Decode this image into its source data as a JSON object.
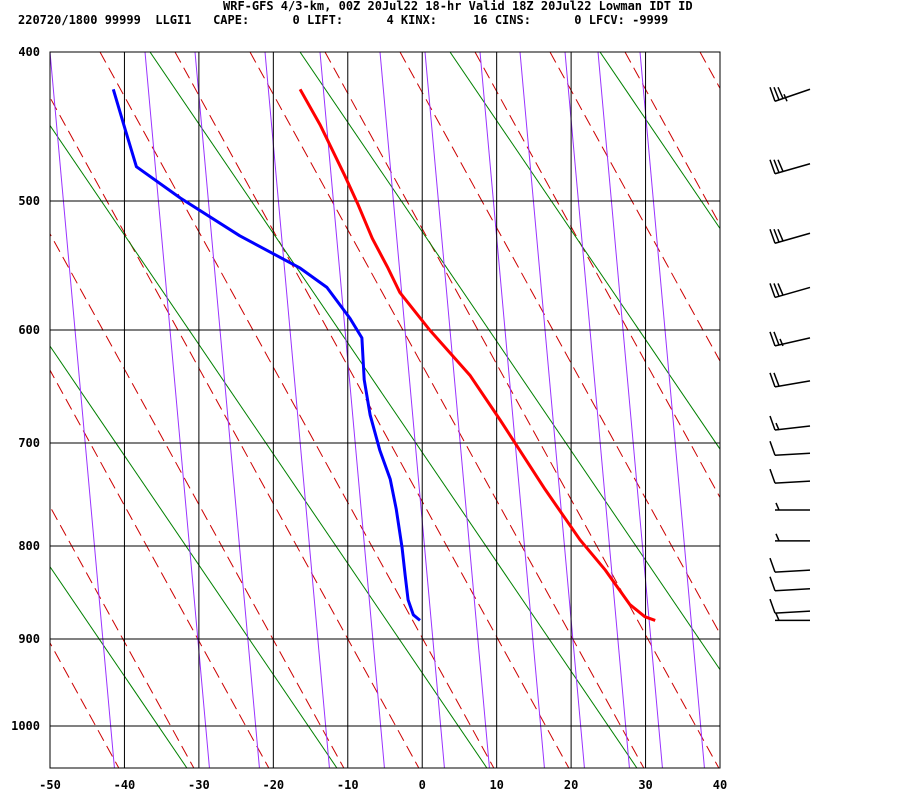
{
  "header": {
    "title": "WRF-GFS 4/3-km, 00Z 20Jul22 18-hr Valid 18Z 20Jul22 Lowman IDT ID",
    "info": "220720/1800 99999  LLGI1   CAPE:      0 LIFT:      4 KINX:     16 CINS:      0 LFCV: -9999"
  },
  "chart_data": {
    "type": "line",
    "title": "WRF-GFS 4/3-km, 00Z 20Jul22 18-hr Valid 18Z 20Jul22 Lowman IDT ID",
    "x_ticks": [
      "-50",
      "-40",
      "-30",
      "-20",
      "-10",
      "0",
      "10",
      "20",
      "30",
      "40"
    ],
    "y_ticks": [
      "400",
      "500",
      "600",
      "700",
      "800",
      "900",
      "1000"
    ],
    "xlim": [
      -50,
      40
    ],
    "ylim": [
      1050,
      400
    ],
    "y_scale": "pressure (log-like), inverted",
    "grid": true,
    "colors": {
      "temperature": "#ff0000",
      "dewpoint": "#0000ff",
      "isotherm": "#008000",
      "dry_adiabat": "#cc0000",
      "mixing_ratio": "#9933ff",
      "grid": "#000000"
    },
    "series": [
      {
        "key": "temperature",
        "points": [
          [
            425,
            -16.4
          ],
          [
            449,
            -13.7
          ],
          [
            483,
            -10.4
          ],
          [
            503,
            -8.6
          ],
          [
            529,
            -6.7
          ],
          [
            552,
            -4.6
          ],
          [
            571,
            -3.0
          ],
          [
            600,
            1.0
          ],
          [
            640,
            6.4
          ],
          [
            680,
            10.5
          ],
          [
            745,
            16.5
          ],
          [
            794,
            21.2
          ],
          [
            826,
            24.6
          ],
          [
            863,
            27.9
          ],
          [
            876,
            29.9
          ],
          [
            880,
            31.3
          ]
        ]
      },
      {
        "key": "dewpoint",
        "points": [
          [
            425,
            -41.5
          ],
          [
            452,
            -39.9
          ],
          [
            477,
            -38.4
          ],
          [
            498,
            -32.5
          ],
          [
            527,
            -24.5
          ],
          [
            552,
            -16.4
          ],
          [
            567,
            -12.8
          ],
          [
            591,
            -9.7
          ],
          [
            607,
            -8.1
          ],
          [
            644,
            -7.8
          ],
          [
            675,
            -7.0
          ],
          [
            707,
            -5.7
          ],
          [
            735,
            -4.3
          ],
          [
            764,
            -3.5
          ],
          [
            802,
            -2.7
          ],
          [
            831,
            -2.3
          ],
          [
            858,
            -1.9
          ],
          [
            874,
            -1.2
          ],
          [
            880,
            -0.3
          ]
        ]
      }
    ],
    "wind_barbs": [
      {
        "pressure": 425,
        "speed_kt": 35
      },
      {
        "pressure": 475,
        "speed_kt": 30
      },
      {
        "pressure": 525,
        "speed_kt": 30
      },
      {
        "pressure": 567,
        "speed_kt": 30
      },
      {
        "pressure": 607,
        "speed_kt": 25
      },
      {
        "pressure": 645,
        "speed_kt": 20
      },
      {
        "pressure": 685,
        "speed_kt": 15
      },
      {
        "pressure": 710,
        "speed_kt": 10
      },
      {
        "pressure": 737,
        "speed_kt": 10
      },
      {
        "pressure": 765,
        "speed_kt": 5
      },
      {
        "pressure": 795,
        "speed_kt": 5
      },
      {
        "pressure": 826,
        "speed_kt": 10
      },
      {
        "pressure": 846,
        "speed_kt": 10
      },
      {
        "pressure": 870,
        "speed_kt": 10
      },
      {
        "pressure": 880,
        "speed_kt": 5
      }
    ]
  }
}
